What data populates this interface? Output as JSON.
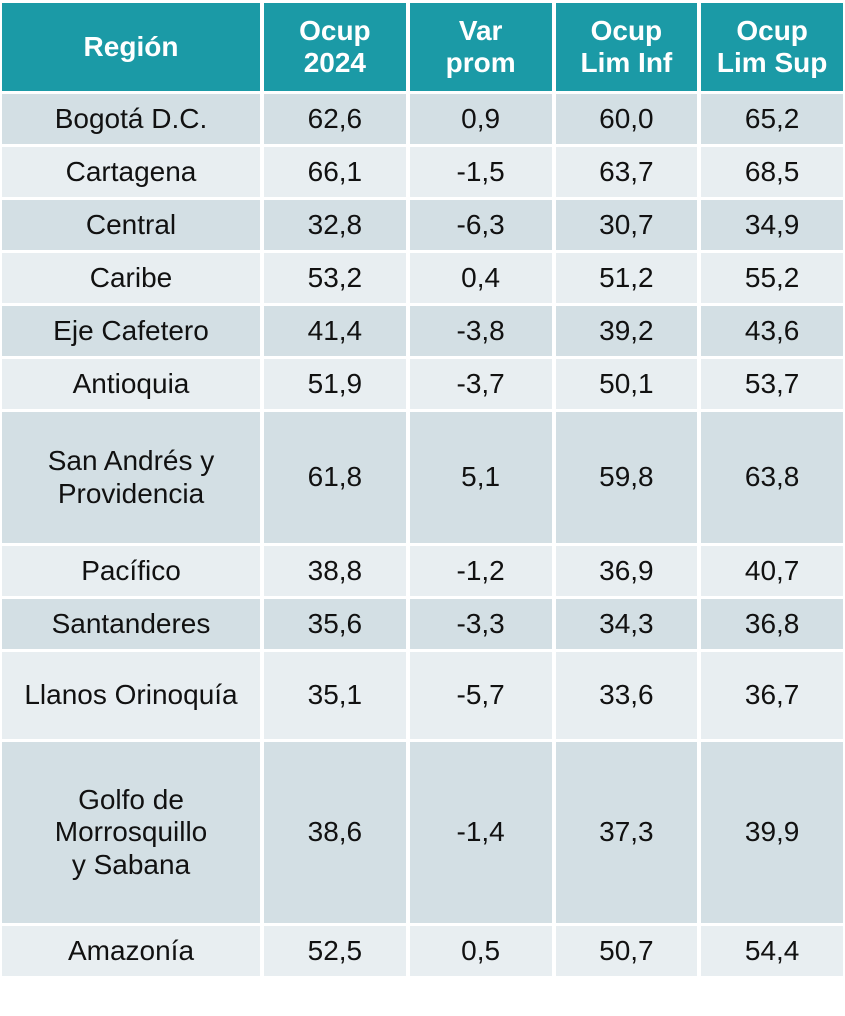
{
  "table": {
    "headers": [
      "Región",
      "Ocup\n2024",
      "Var\nprom",
      "Ocup\nLim Inf",
      "Ocup\nLim Sup"
    ],
    "rows": [
      [
        "Bogotá D.C.",
        "62,6",
        "0,9",
        "60,0",
        "65,2"
      ],
      [
        "Cartagena",
        "66,1",
        "-1,5",
        "63,7",
        "68,5"
      ],
      [
        "Central",
        "32,8",
        "-6,3",
        "30,7",
        "34,9"
      ],
      [
        "Caribe",
        "53,2",
        "0,4",
        "51,2",
        "55,2"
      ],
      [
        "Eje Cafetero",
        "41,4",
        "-3,8",
        "39,2",
        "43,6"
      ],
      [
        "Antioquia",
        "51,9",
        "-3,7",
        "50,1",
        "53,7"
      ],
      [
        "San Andrés y\nProvidencia",
        "61,8",
        "5,1",
        "59,8",
        "63,8"
      ],
      [
        "Pacífico",
        "38,8",
        "-1,2",
        "36,9",
        "40,7"
      ],
      [
        "Santanderes",
        "35,6",
        "-3,3",
        "34,3",
        "36,8"
      ],
      [
        "Llanos Orinoquía",
        "35,1",
        "-5,7",
        "33,6",
        "36,7"
      ],
      [
        "Golfo de\nMorrosquillo\ny Sabana",
        "38,6",
        "-1,4",
        "37,3",
        "39,9"
      ],
      [
        "Amazonía",
        "52,5",
        "0,5",
        "50,7",
        "54,4"
      ]
    ]
  }
}
